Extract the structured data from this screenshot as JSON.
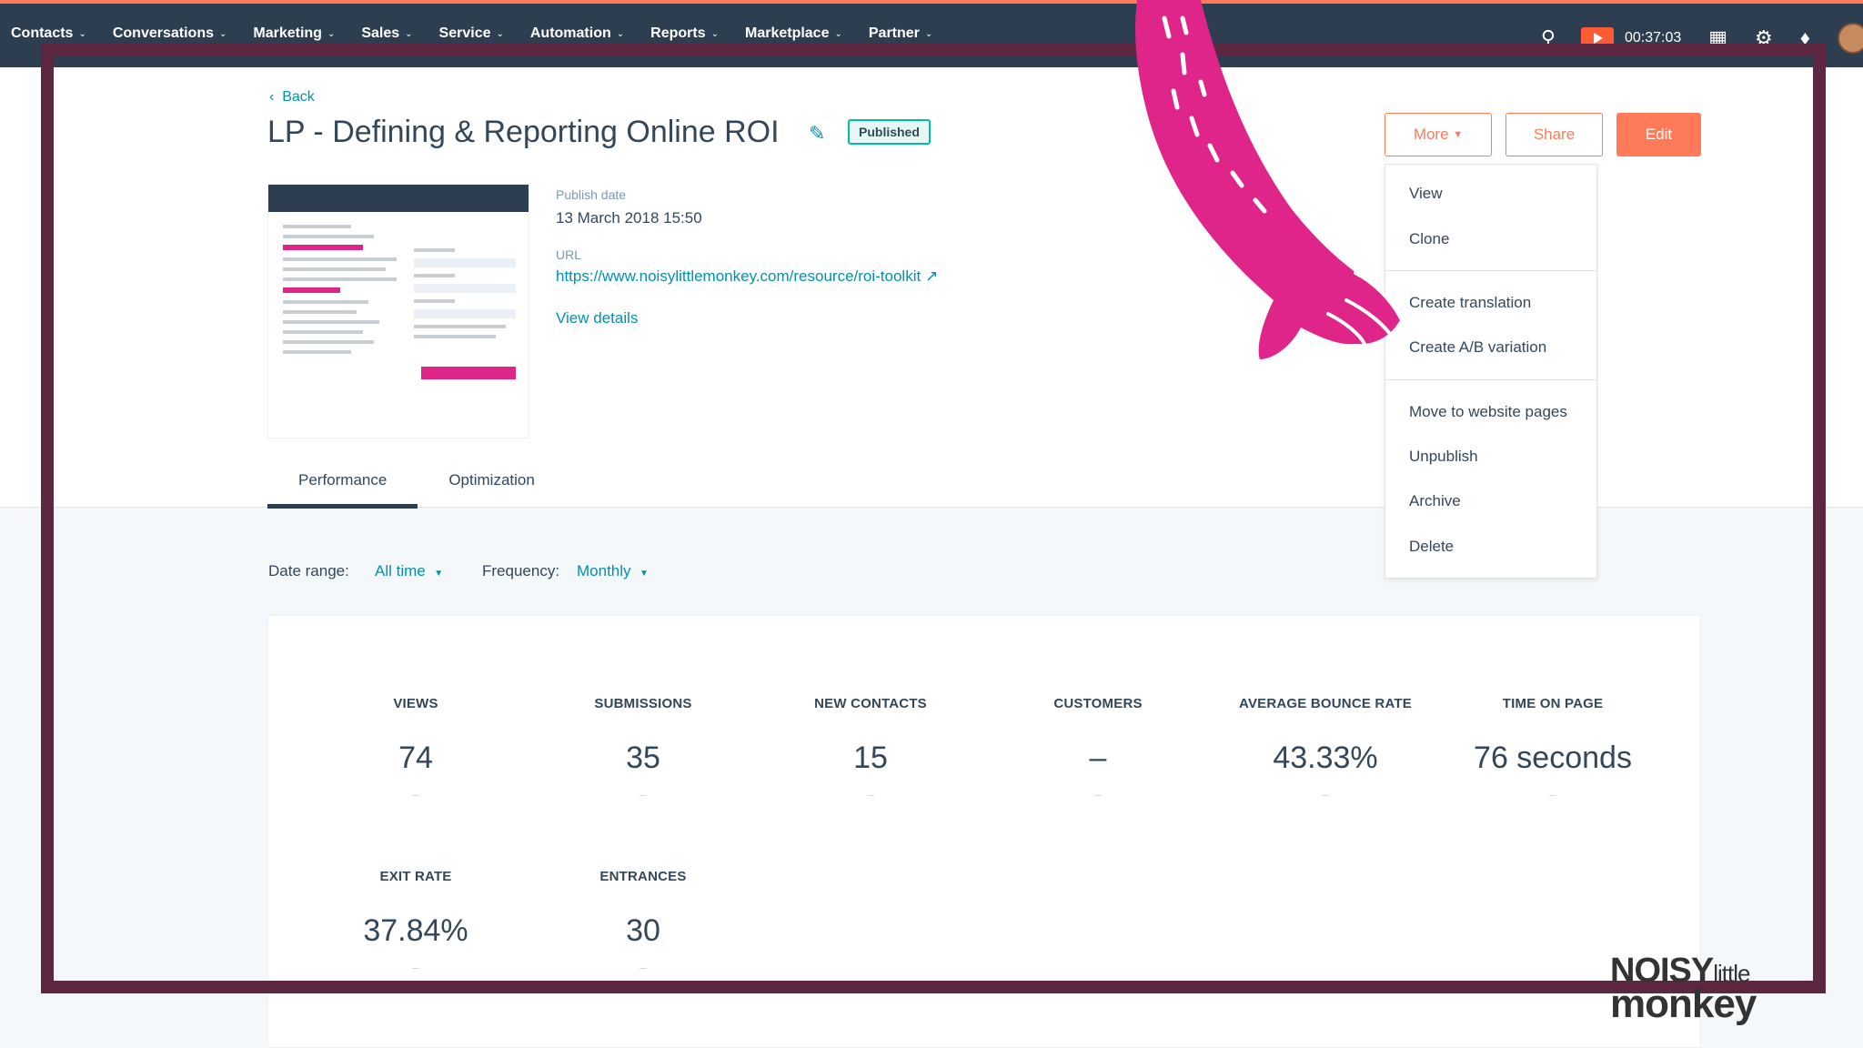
{
  "nav": {
    "items": [
      "Contacts",
      "Conversations",
      "Marketing",
      "Sales",
      "Service",
      "Automation",
      "Reports",
      "Marketplace",
      "Partner"
    ],
    "timer": "00:37:03"
  },
  "page": {
    "back_label": "Back",
    "title": "LP - Defining & Reporting Online ROI",
    "status_badge": "Published",
    "publish_date_label": "Publish date",
    "publish_date": "13 March 2018 15:50",
    "url_label": "URL",
    "url": "https://www.noisylittlemonkey.com/resource/roi-toolkit",
    "view_details": "View details"
  },
  "actions": {
    "more": "More",
    "share": "Share",
    "edit": "Edit"
  },
  "more_menu": {
    "items": [
      "View",
      "Clone",
      "Create translation",
      "Create A/B variation",
      "Move to website pages",
      "Unpublish",
      "Archive",
      "Delete"
    ]
  },
  "tabs": [
    "Performance",
    "Optimization"
  ],
  "filters": {
    "date_range_label": "Date range:",
    "date_range_value": "All time",
    "frequency_label": "Frequency:",
    "frequency_value": "Monthly"
  },
  "stats": [
    {
      "label": "VIEWS",
      "value": "74"
    },
    {
      "label": "SUBMISSIONS",
      "value": "35"
    },
    {
      "label": "NEW CONTACTS",
      "value": "15"
    },
    {
      "label": "CUSTOMERS",
      "value": "–"
    },
    {
      "label": "AVERAGE BOUNCE RATE",
      "value": "43.33%"
    },
    {
      "label": "TIME ON PAGE",
      "value": "76 seconds"
    },
    {
      "label": "EXIT RATE",
      "value": "37.84%"
    },
    {
      "label": "ENTRANCES",
      "value": "30"
    }
  ],
  "logo": {
    "line1": "NOISY",
    "line1_small": "little",
    "line2": "monkey"
  },
  "colors": {
    "nav_bg": "#2d3e50",
    "accent": "#ff7a59",
    "link": "#0091ae",
    "frame": "#5e2741",
    "arm": "#e0258a"
  }
}
